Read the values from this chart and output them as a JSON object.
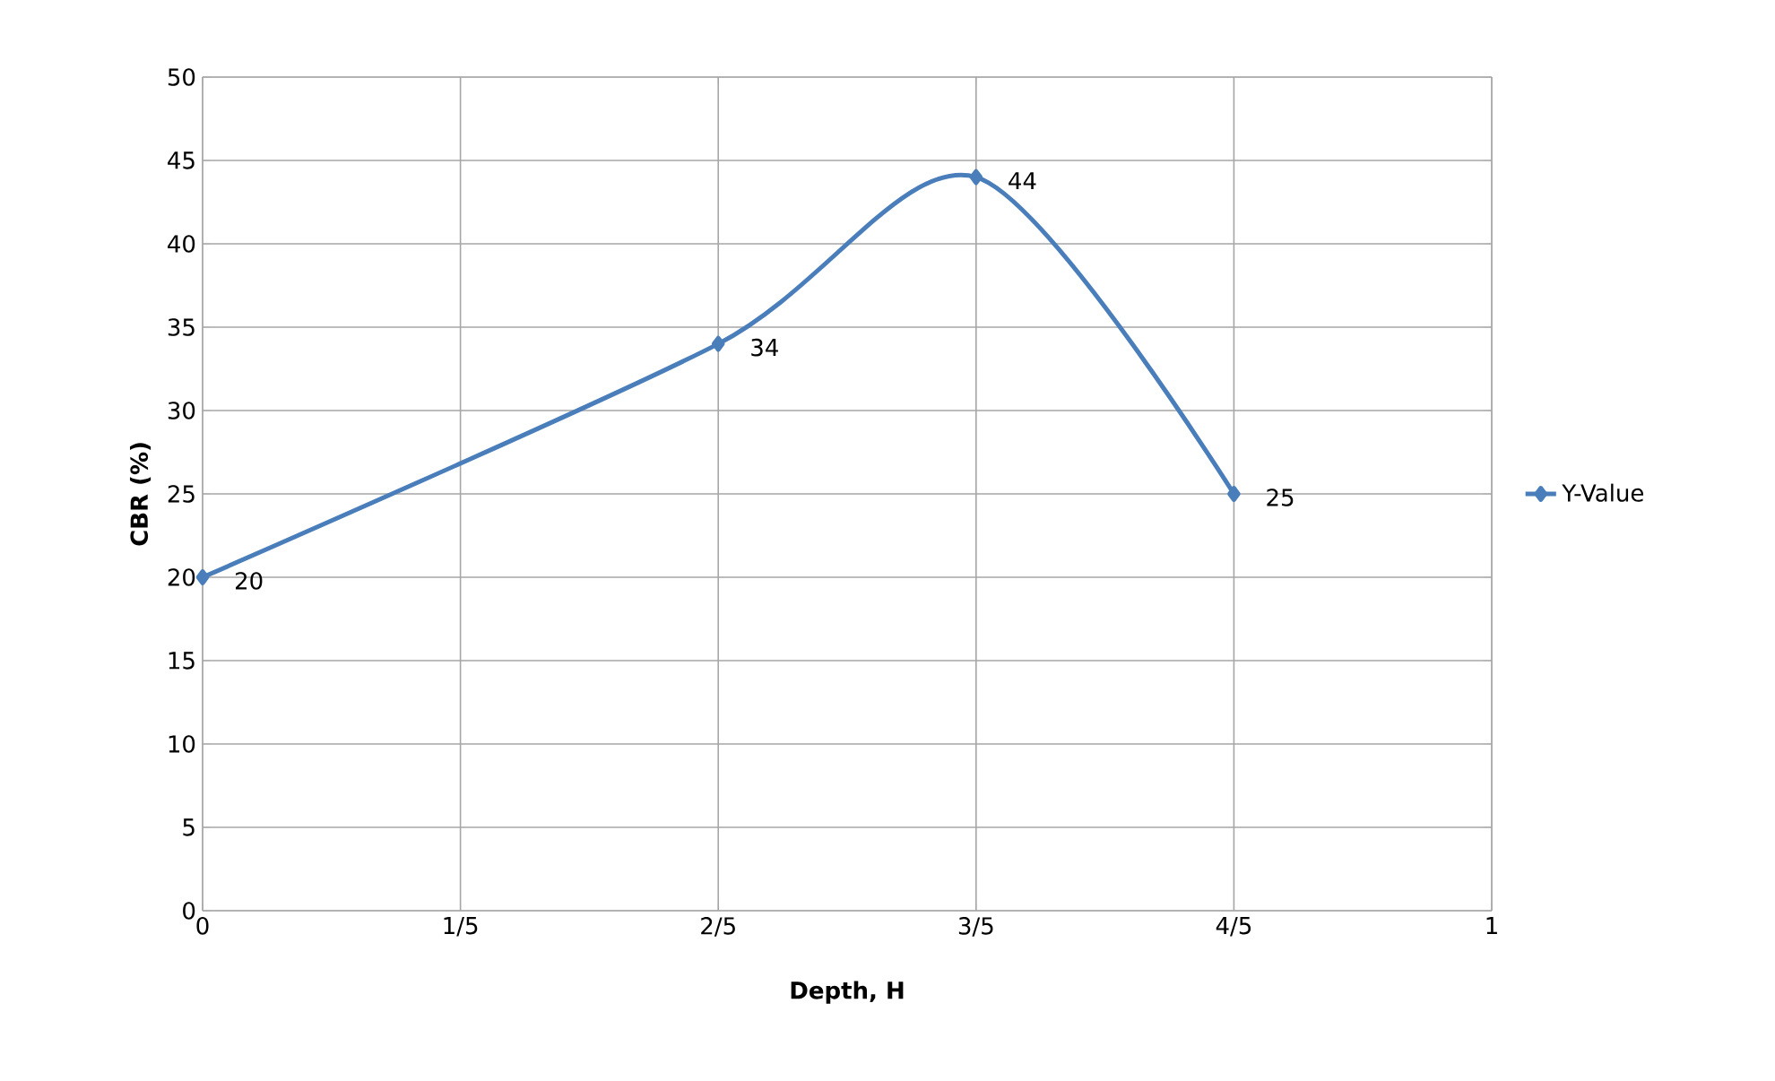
{
  "chart_data": {
    "type": "line",
    "xlabel": "Depth, H",
    "ylabel": "CBR (%)",
    "x": [
      0,
      0.4,
      0.6,
      0.8
    ],
    "series": [
      {
        "name": "Y-Value",
        "color": "#4a7ebb",
        "values": [
          20,
          34,
          44,
          25
        ]
      }
    ],
    "xlim": [
      0,
      1
    ],
    "ylim": [
      0,
      50
    ],
    "xticks": [
      0,
      {
        "value": 0.2,
        "label": "1/5"
      },
      {
        "value": 0.4,
        "label": "2/5"
      },
      {
        "value": 0.6,
        "label": "3/5"
      },
      {
        "value": 0.8,
        "label": "4/5"
      },
      1
    ],
    "yticks": [
      0,
      5,
      10,
      15,
      20,
      25,
      30,
      35,
      40,
      45,
      50
    ],
    "grid": true,
    "legend": "right",
    "marker": "diamond",
    "line_style": "solid",
    "data_labels": true
  }
}
